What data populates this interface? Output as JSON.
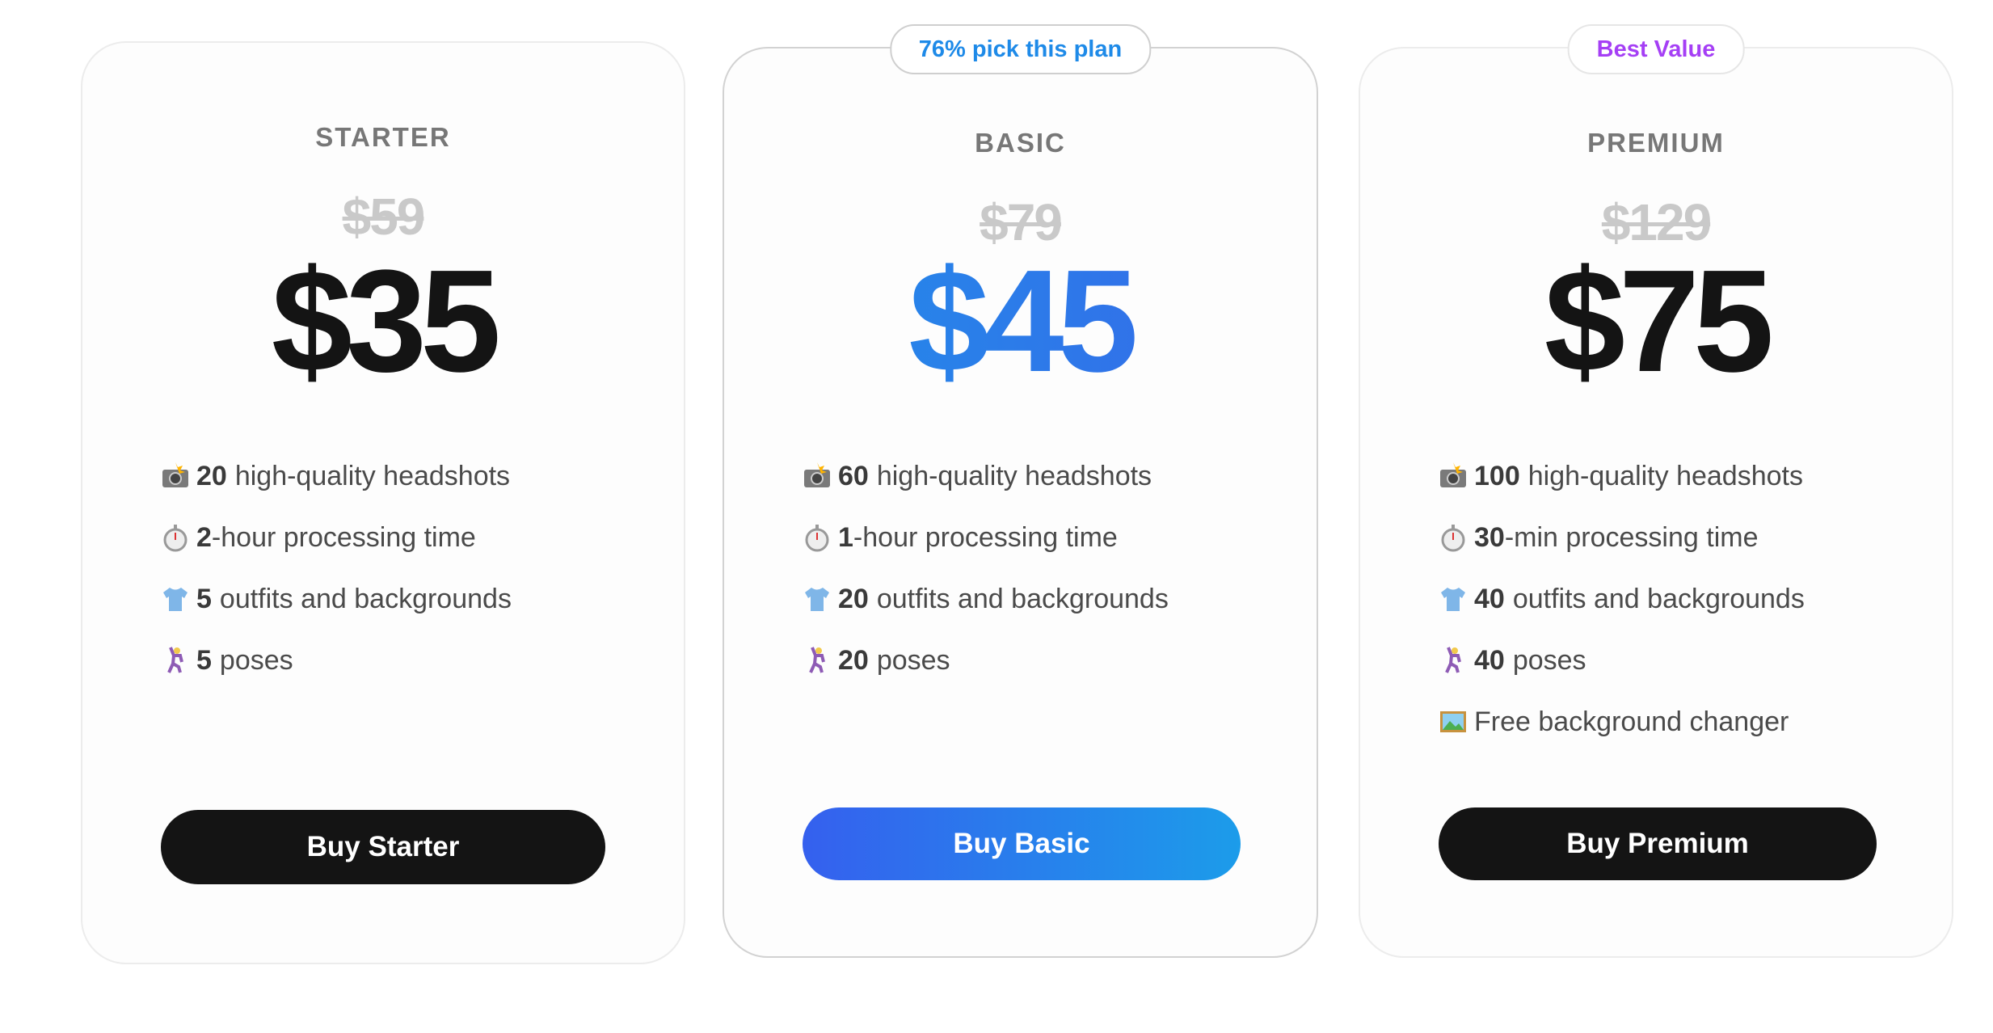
{
  "plans": [
    {
      "name": "STARTER",
      "old_price": "$59",
      "price": "$35",
      "badge": "",
      "features": [
        {
          "icon": "camera-flash-icon",
          "bold": "20",
          "text": "high-quality headshots"
        },
        {
          "icon": "stopwatch-icon",
          "bold": "2",
          "text": "-hour processing time"
        },
        {
          "icon": "shirt-icon",
          "bold": "5",
          "text": "outfits and backgrounds"
        },
        {
          "icon": "dancer-icon",
          "bold": "5",
          "text": "poses"
        }
      ],
      "button": "Buy Starter"
    },
    {
      "name": "BASIC",
      "old_price": "$79",
      "price": "$45",
      "badge": "76% pick this plan",
      "features": [
        {
          "icon": "camera-flash-icon",
          "bold": "60",
          "text": "high-quality headshots"
        },
        {
          "icon": "stopwatch-icon",
          "bold": "1",
          "text": "-hour processing time"
        },
        {
          "icon": "shirt-icon",
          "bold": "20",
          "text": "outfits and backgrounds"
        },
        {
          "icon": "dancer-icon",
          "bold": "20",
          "text": "poses"
        }
      ],
      "button": "Buy Basic"
    },
    {
      "name": "PREMIUM",
      "old_price": "$129",
      "price": "$75",
      "badge": "Best Value",
      "features": [
        {
          "icon": "camera-flash-icon",
          "bold": "100",
          "text": "high-quality headshots"
        },
        {
          "icon": "stopwatch-icon",
          "bold": "30",
          "text": "-min processing time"
        },
        {
          "icon": "shirt-icon",
          "bold": "40",
          "text": "outfits and backgrounds"
        },
        {
          "icon": "dancer-icon",
          "bold": "40",
          "text": "poses"
        },
        {
          "icon": "framed-picture-icon",
          "bold": "",
          "text": "Free background changer"
        }
      ],
      "button": "Buy Premium"
    }
  ],
  "colors": {
    "accent_blue": "#2190ea",
    "badge_purple": "#a53ff5",
    "dark": "#141414"
  }
}
